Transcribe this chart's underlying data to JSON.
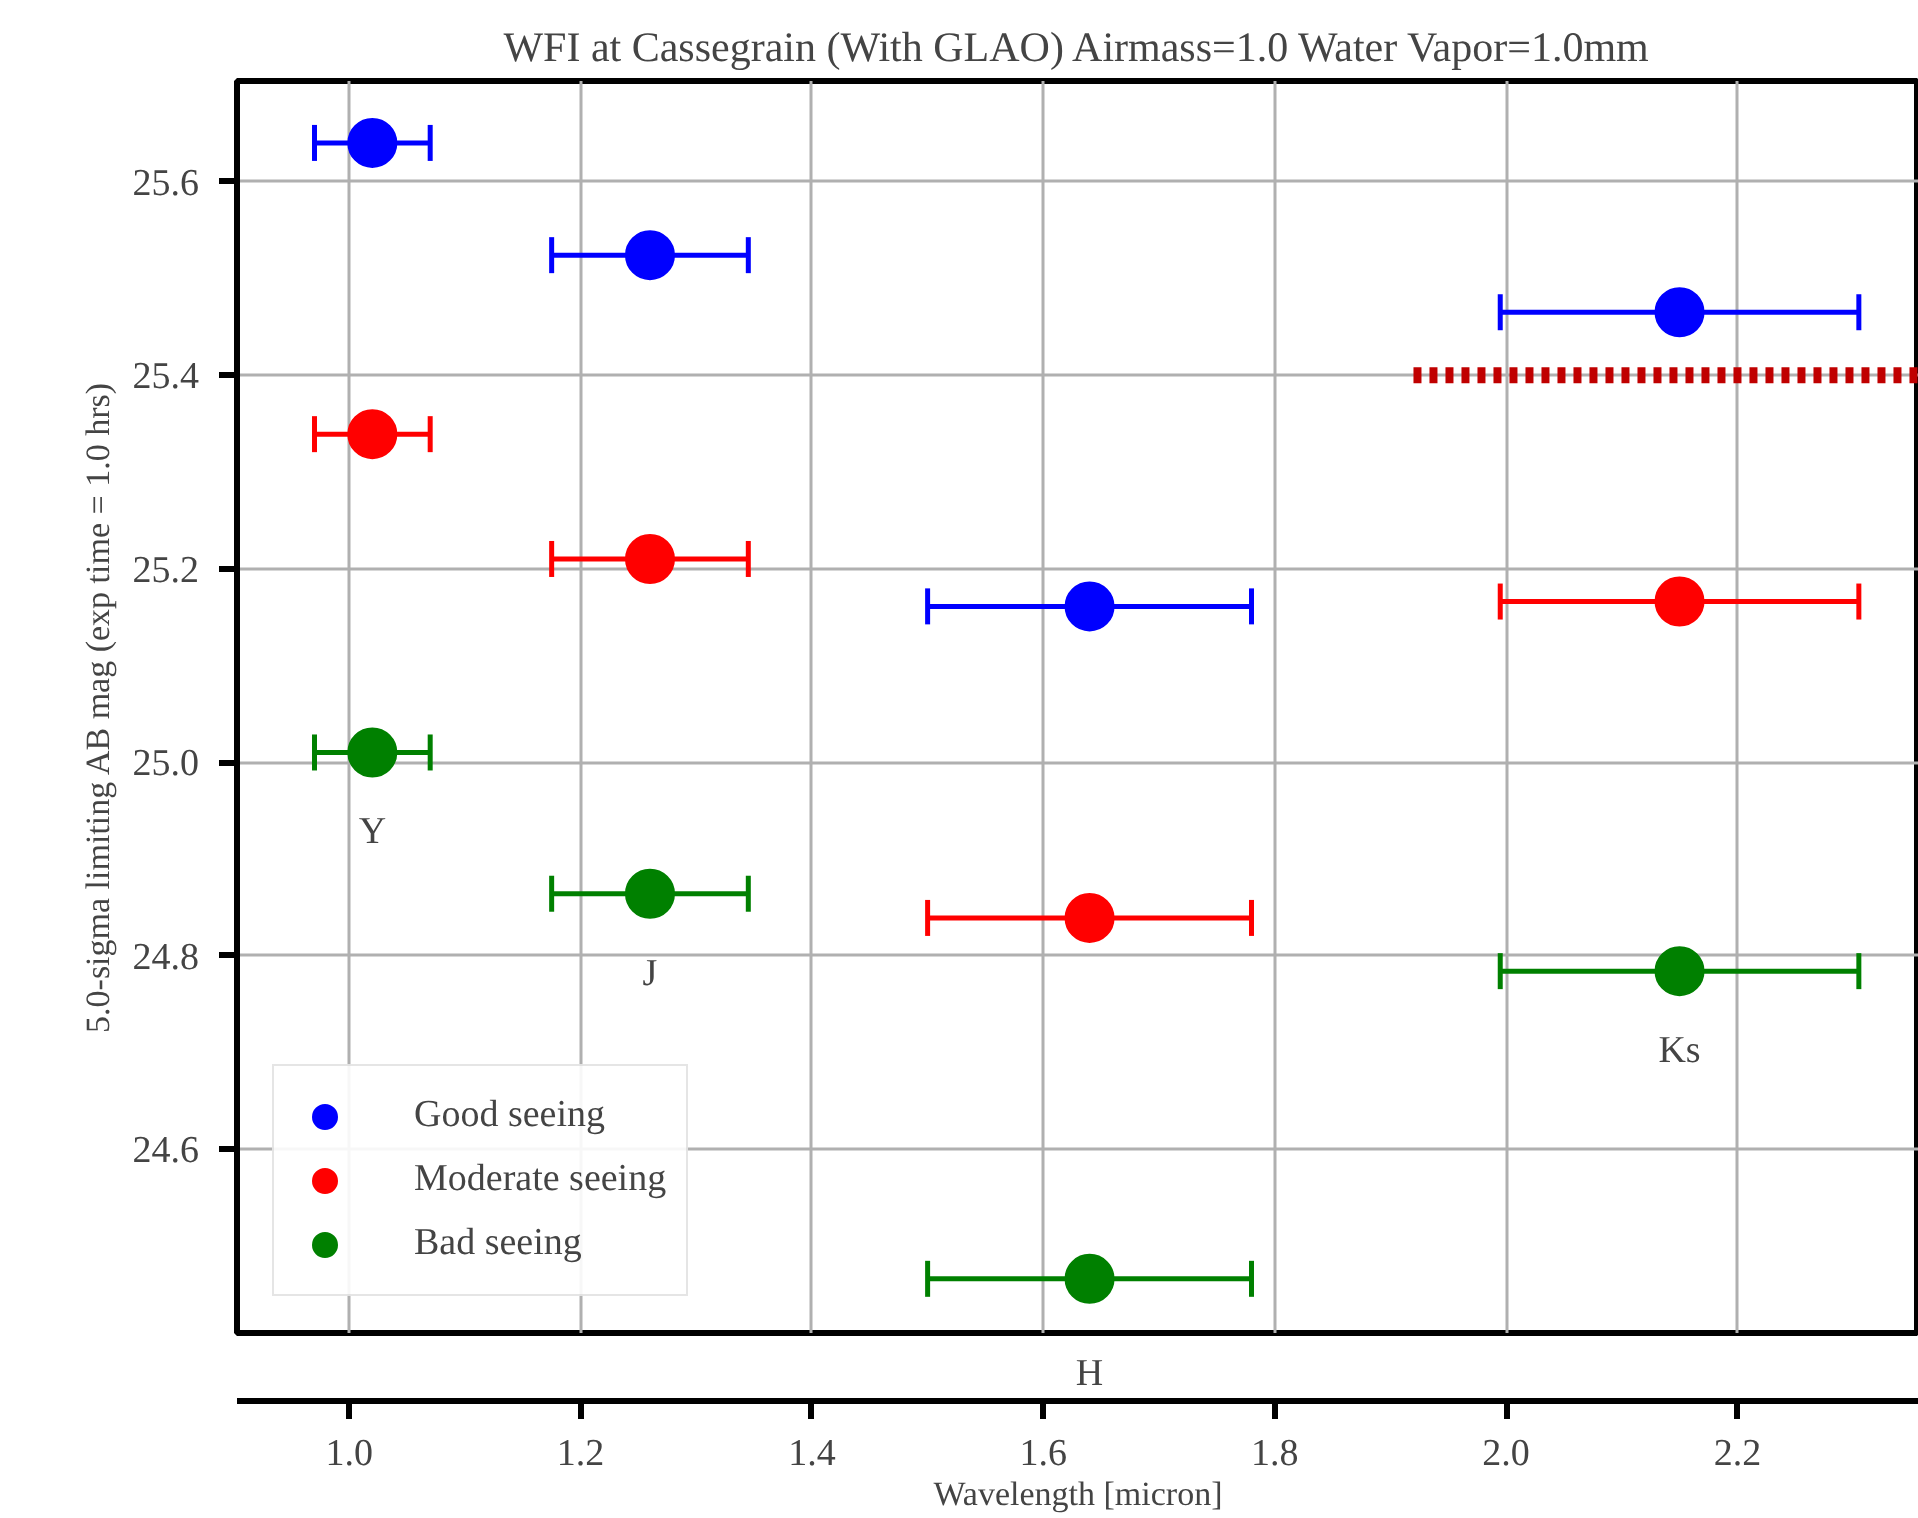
{
  "chart_data": {
    "type": "scatter",
    "title": "WFI at Cassegrain (With GLAO) Airmass=1.0 Water Vapor=1.0mm",
    "xlabel": "Wavelength [micron]",
    "ylabel": "5.0-sigma limiting AB mag (exp time = 1.0 hrs)",
    "x": [
      1.02,
      1.26,
      1.64,
      2.15
    ],
    "series": [
      {
        "name": "Good seeing",
        "color": "#0000ff",
        "values": [
          25.64,
          25.524,
          25.161,
          25.465
        ],
        "xerrors": [
          0.05,
          0.085,
          0.14,
          0.155
        ]
      },
      {
        "name": "Moderate seeing",
        "color": "#ff0000",
        "values": [
          25.339,
          25.21,
          24.839,
          25.166
        ],
        "xerrors": [
          0.05,
          0.085,
          0.14,
          0.155
        ]
      },
      {
        "name": "Bad seeing",
        "color": "#008000",
        "values": [
          25.01,
          24.864,
          24.466,
          24.784
        ],
        "xerrors": [
          0.05,
          0.085,
          0.14,
          0.155
        ]
      },
      {
        "type": "line",
        "color": "#c00000",
        "x": [
          1.92,
          2.357
        ],
        "values": [
          25.4,
          25.4
        ],
        "line_style": "dotted",
        "marker": "none"
      }
    ],
    "annotations": [
      "Y",
      "J",
      "H",
      "Ks"
    ],
    "xlim": [
      0.903,
      2.357
    ],
    "ylim": [
      24.41,
      25.704
    ],
    "xticks": [
      {
        "value": 1.0,
        "label": "1.0"
      },
      1.2,
      1.4,
      1.6,
      1.8,
      {
        "value": 2.0,
        "label": "2.0"
      },
      2.2
    ],
    "yticks": [
      24.6,
      24.8,
      {
        "value": 25.0,
        "label": "25.0"
      },
      25.2,
      25.4,
      25.6
    ],
    "grid": true,
    "legend": "bottom left",
    "marker": "circle"
  }
}
